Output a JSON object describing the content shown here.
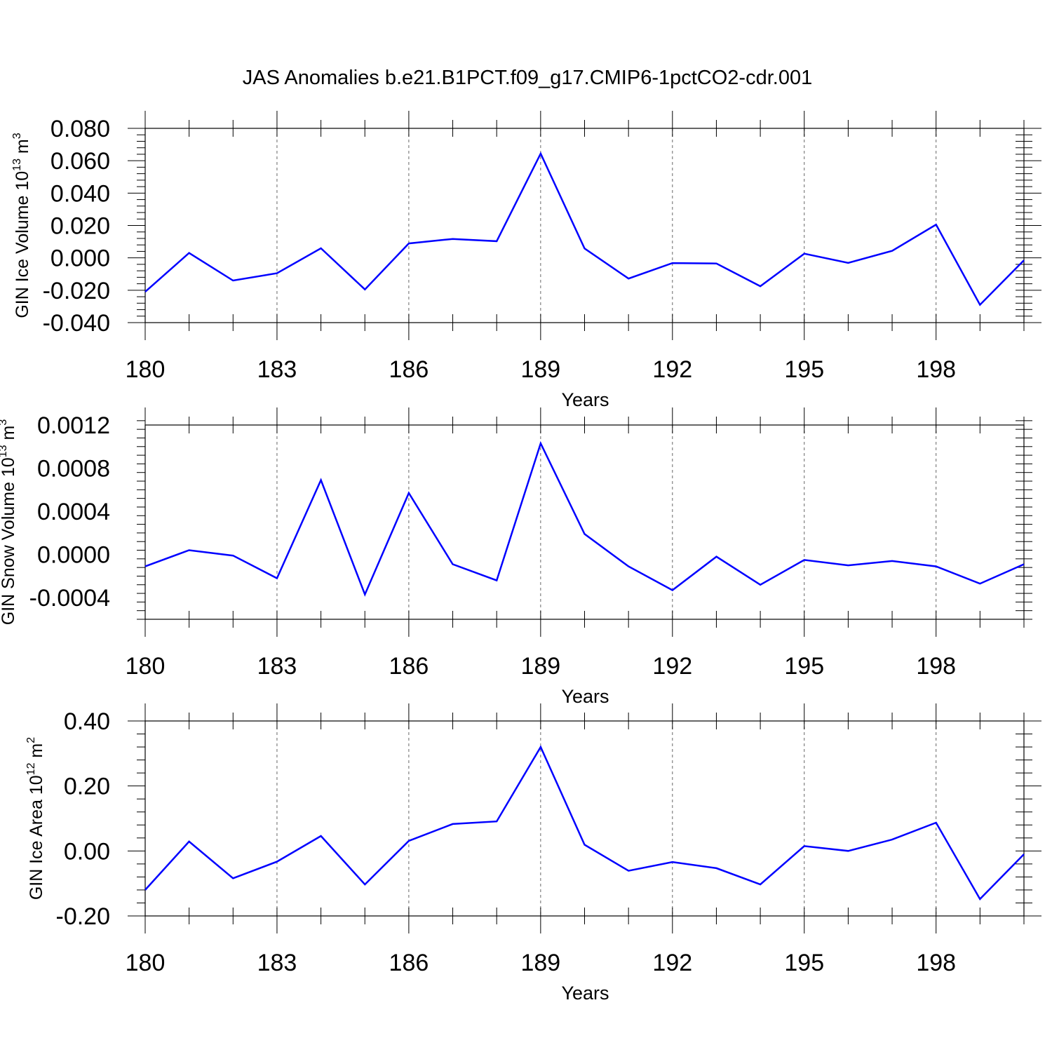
{
  "title": "JAS Anomalies b.e21.B1PCT.f09_g17.CMIP6-1pctCO2-cdr.001",
  "colors": {
    "series": "#0000ff",
    "axis": "#000000",
    "grid": "#000000"
  },
  "chart_data": [
    {
      "type": "line",
      "xlabel": "Years",
      "ylabel": {
        "text": "GIN Ice Volume 10",
        "exponent": "13",
        "unit": " m",
        "unit_exponent": "3"
      },
      "xlim": [
        180,
        200
      ],
      "ylim": [
        -0.04,
        0.08
      ],
      "yticks": [
        -0.04,
        -0.02,
        0.0,
        0.02,
        0.04,
        0.06,
        0.08
      ],
      "ytick_labels": [
        "-0.040",
        "-0.020",
        "0.000",
        "0.020",
        "0.040",
        "0.060",
        "0.080"
      ],
      "xticks": [
        180,
        183,
        186,
        189,
        192,
        195,
        198
      ],
      "xtick_labels": [
        "180",
        "183",
        "186",
        "189",
        "192",
        "195",
        "198"
      ],
      "grid": "vertical dashed at labeled x ticks",
      "x": [
        180,
        181,
        182,
        183,
        184,
        185,
        186,
        187,
        188,
        189,
        190,
        191,
        192,
        193,
        194,
        195,
        196,
        197,
        198,
        199,
        200
      ],
      "y": [
        -0.021,
        0.003,
        -0.014,
        -0.0095,
        0.0059,
        -0.0195,
        0.0089,
        0.0117,
        0.0103,
        0.0644,
        0.0058,
        -0.0128,
        -0.0032,
        -0.0035,
        -0.0175,
        0.0026,
        -0.0031,
        0.0043,
        0.0205,
        -0.029,
        -0.0015
      ]
    },
    {
      "type": "line",
      "xlabel": "Years",
      "ylabel": {
        "text": "GIN Snow Volume 10",
        "exponent": "13",
        "unit": " m",
        "unit_exponent": "3"
      },
      "xlim": [
        180,
        200
      ],
      "ylim": [
        -0.0006,
        0.0012
      ],
      "yticks": [
        -0.0004,
        0.0,
        0.0004,
        0.0008,
        0.0012
      ],
      "ytick_labels": [
        "-0.0004",
        "0.0000",
        "0.0004",
        "0.0008",
        "0.0012"
      ],
      "xticks": [
        180,
        183,
        186,
        189,
        192,
        195,
        198
      ],
      "xtick_labels": [
        "180",
        "183",
        "186",
        "189",
        "192",
        "195",
        "198"
      ],
      "grid": "vertical dashed at labeled x ticks",
      "x": [
        180,
        181,
        182,
        183,
        184,
        185,
        186,
        187,
        188,
        189,
        190,
        191,
        192,
        193,
        194,
        195,
        196,
        197,
        198,
        199,
        200
      ],
      "y": [
        -0.00011,
        4e-05,
        -1e-05,
        -0.00022,
        0.00069,
        -0.00037,
        0.00057,
        -9e-05,
        -0.00024,
        0.00103,
        0.00019,
        -0.00011,
        -0.00033,
        -2e-05,
        -0.00028,
        -5e-05,
        -0.0001,
        -6e-05,
        -0.00011,
        -0.00027,
        -9e-05
      ]
    },
    {
      "type": "line",
      "xlabel": "Years",
      "ylabel": {
        "text": "GIN Ice Area 10",
        "exponent": "12",
        "unit": " m",
        "unit_exponent": "2"
      },
      "xlim": [
        180,
        200
      ],
      "ylim": [
        -0.2,
        0.4
      ],
      "yticks": [
        -0.2,
        0.0,
        0.2,
        0.4
      ],
      "ytick_labels": [
        "-0.20",
        "0.00",
        "0.20",
        "0.40"
      ],
      "xticks": [
        180,
        183,
        186,
        189,
        192,
        195,
        198
      ],
      "xtick_labels": [
        "180",
        "183",
        "186",
        "189",
        "192",
        "195",
        "198"
      ],
      "grid": "vertical dashed at labeled x ticks",
      "x": [
        180,
        181,
        182,
        183,
        184,
        185,
        186,
        187,
        188,
        189,
        190,
        191,
        192,
        193,
        194,
        195,
        196,
        197,
        198,
        199,
        200
      ],
      "y": [
        -0.12,
        0.029,
        -0.084,
        -0.033,
        0.046,
        -0.103,
        0.031,
        0.083,
        0.091,
        0.32,
        0.019,
        -0.061,
        -0.034,
        -0.053,
        -0.103,
        0.015,
        0.0,
        0.035,
        0.087,
        -0.148,
        -0.01
      ]
    }
  ]
}
